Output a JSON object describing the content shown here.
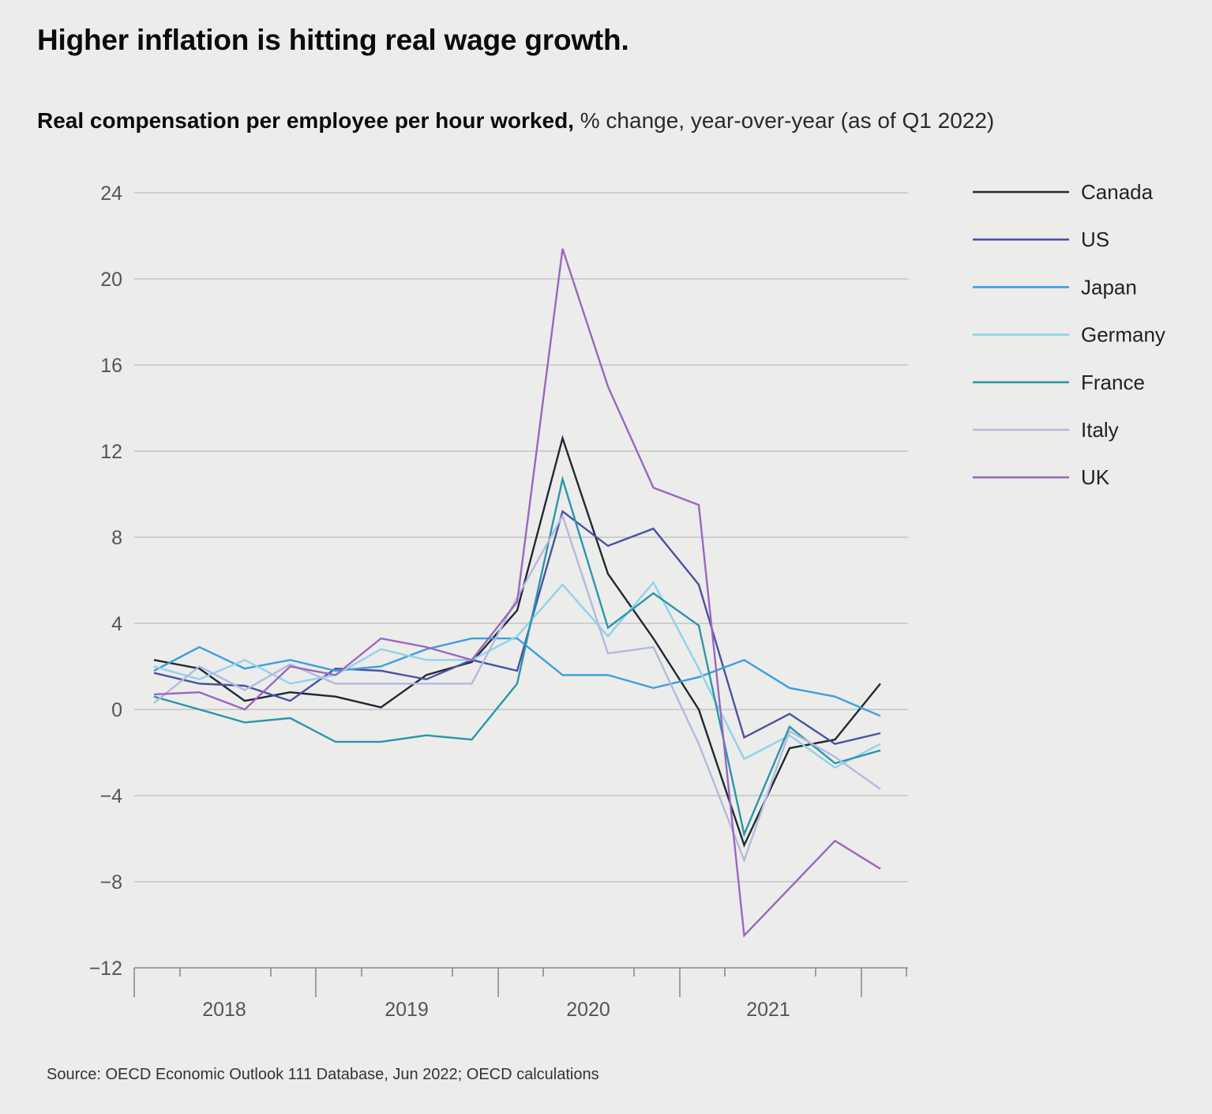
{
  "title": "Higher inflation is hitting real wage growth.",
  "subtitle": {
    "bold": "Real compensation per employee per hour worked,",
    "rest": " % change, year-over-year (as of Q1 2022)"
  },
  "source": "Source: OECD Economic Outlook 111 Database, Jun 2022; OECD calculations",
  "chart_data": {
    "type": "line",
    "title": "Higher inflation is hitting real wage growth.",
    "ylabel": "",
    "xlabel": "",
    "ylim": [
      -12,
      24
    ],
    "yticks": [
      24,
      20,
      16,
      12,
      8,
      4,
      0,
      -4,
      -8,
      -12
    ],
    "ytick_labels": [
      "24",
      "20",
      "16",
      "12",
      "8",
      "4",
      "0",
      "−4",
      "−8",
      "−12"
    ],
    "grid": true,
    "legend_position": "right",
    "x": [
      "2018Q1",
      "2018Q2",
      "2018Q3",
      "2018Q4",
      "2019Q1",
      "2019Q2",
      "2019Q3",
      "2019Q4",
      "2020Q1",
      "2020Q2",
      "2020Q3",
      "2020Q4",
      "2021Q1",
      "2021Q2",
      "2021Q3",
      "2021Q4",
      "2022Q1"
    ],
    "year_labels": [
      "2018",
      "2019",
      "2020",
      "2021"
    ],
    "series": [
      {
        "name": "Canada",
        "color": "#1e2a33",
        "values": [
          2.3,
          1.9,
          0.4,
          0.8,
          0.6,
          0.1,
          1.6,
          2.2,
          4.6,
          12.6,
          6.3,
          3.3,
          0.0,
          -6.3,
          -1.8,
          -1.4,
          1.2
        ]
      },
      {
        "name": "US",
        "color": "#4a52a3",
        "values": [
          1.7,
          1.2,
          1.1,
          0.4,
          1.9,
          1.8,
          1.4,
          2.3,
          1.8,
          9.2,
          7.6,
          8.4,
          5.8,
          -1.3,
          -0.2,
          -1.6,
          -1.1
        ]
      },
      {
        "name": "Japan",
        "color": "#3b9fe0",
        "values": [
          1.8,
          2.9,
          1.9,
          2.3,
          1.8,
          2.0,
          2.8,
          3.3,
          3.3,
          1.6,
          1.6,
          1.0,
          1.5,
          2.3,
          1.0,
          0.6,
          -0.3
        ]
      },
      {
        "name": "Germany",
        "color": "#8fd3ec",
        "values": [
          2.0,
          1.4,
          2.3,
          1.2,
          1.6,
          2.8,
          2.3,
          2.3,
          3.4,
          5.8,
          3.4,
          5.9,
          1.9,
          -2.3,
          -1.2,
          -2.7,
          -1.6
        ]
      },
      {
        "name": "France",
        "color": "#2a96ac",
        "values": [
          0.6,
          0.0,
          -0.6,
          -0.4,
          -1.5,
          -1.5,
          -1.2,
          -1.4,
          1.2,
          10.7,
          3.8,
          5.4,
          3.9,
          -5.8,
          -0.8,
          -2.5,
          -1.9
        ]
      },
      {
        "name": "Italy",
        "color": "#b2badf",
        "values": [
          0.3,
          2.0,
          0.9,
          2.1,
          1.2,
          1.2,
          1.2,
          1.2,
          5.2,
          9.0,
          2.6,
          2.9,
          -1.6,
          -7.0,
          -1.0,
          -2.2,
          -3.7
        ]
      },
      {
        "name": "UK",
        "color": "#9a67be",
        "values": [
          0.7,
          0.8,
          0.0,
          2.0,
          1.6,
          3.3,
          2.9,
          2.3,
          5.0,
          21.4,
          15.0,
          10.3,
          9.5,
          -10.5,
          -8.3,
          -6.1,
          -7.4
        ]
      }
    ]
  }
}
